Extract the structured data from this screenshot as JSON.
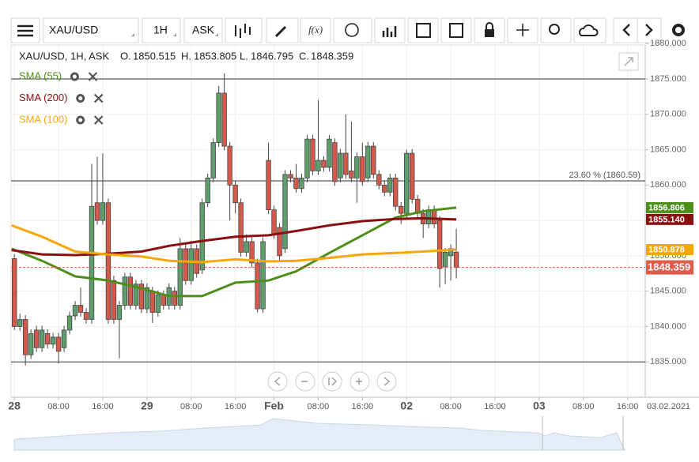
{
  "toolbar": {
    "symbol": "XAU/USD",
    "interval": "1H",
    "price_side": "ASK"
  },
  "header": {
    "text": "XAU/USD, 1H, ASK",
    "open_label": "O.",
    "high_label": "H.",
    "low_label": "L.",
    "close_label": "C."
  },
  "chart_data": {
    "type": "candlestick",
    "up_color": "#5e9d6c",
    "down_color": "#d35a4a",
    "x": [
      0,
      1,
      2,
      3,
      4,
      5,
      6,
      7,
      8,
      9,
      10,
      11,
      12,
      13,
      14,
      15,
      16,
      17,
      18,
      19,
      20,
      21,
      22,
      23,
      24,
      25,
      26,
      27,
      28,
      29,
      30,
      31,
      32,
      33,
      34,
      35,
      36,
      37,
      38,
      39,
      40,
      41,
      42,
      43,
      44,
      45,
      46,
      47,
      48,
      49,
      50,
      51,
      52,
      53,
      54,
      55,
      56,
      57,
      58,
      59,
      60,
      61,
      62,
      63,
      64,
      65,
      66,
      67,
      68,
      69,
      70,
      71,
      72,
      73,
      74,
      75,
      76,
      77,
      78,
      79,
      80
    ],
    "open": [
      1849.6,
      1840,
      1841,
      1836,
      1839.5,
      1837,
      1839,
      1837.5,
      1838.5,
      1837,
      1839.5,
      1841.5,
      1843,
      1842,
      1841,
      1857.5,
      1855,
      1857.5,
      1846.5,
      1841,
      1843,
      1847,
      1843,
      1846,
      1842.5,
      1845,
      1842,
      1844.5,
      1843,
      1845,
      1843,
      1851,
      1846.5,
      1851,
      1848,
      1857.5,
      1861,
      1866,
      1873,
      1865.5,
      1860,
      1857.5,
      1850.5,
      1852,
      1849,
      1842.5,
      1863.5,
      1856.5,
      1854,
      1851,
      1861.5,
      1861,
      1859.5,
      1861,
      1866.5,
      1862,
      1863.5,
      1862.5,
      1866,
      1861,
      1864.5,
      1862,
      1861,
      1864,
      1861,
      1865.5,
      1861.5,
      1860,
      1859,
      1861,
      1857,
      1856,
      1864.5,
      1858,
      1856,
      1854.5,
      1856.5,
      1855,
      1848.5,
      1850,
      1850.515
    ],
    "high": [
      1850.2,
      1841.8,
      1841.6,
      1839.6,
      1840.1,
      1840.1,
      1839.6,
      1839.1,
      1839.1,
      1840.1,
      1842.1,
      1843.6,
      1845.5,
      1842.6,
      1863,
      1864,
      1864.5,
      1858.1,
      1847.2,
      1843.6,
      1847.6,
      1847.6,
      1846.6,
      1846.6,
      1846.1,
      1845.6,
      1845.1,
      1845.1,
      1846.1,
      1845.6,
      1852.5,
      1851.6,
      1852.1,
      1851.6,
      1858.1,
      1861.6,
      1866.6,
      1874,
      1875.8,
      1866.1,
      1860.6,
      1858.1,
      1853,
      1852.6,
      1849.6,
      1852.6,
      1866,
      1857.1,
      1854.6,
      1862.1,
      1862.1,
      1863,
      1861.6,
      1867.1,
      1867.1,
      1872,
      1864.1,
      1867.1,
      1866.6,
      1865.1,
      1870,
      1869,
      1864.6,
      1866,
      1866.1,
      1866.1,
      1862.1,
      1860.6,
      1861.6,
      1861.6,
      1857.6,
      1865,
      1865.1,
      1858.6,
      1856.6,
      1857.1,
      1857.1,
      1855.6,
      1851.1,
      1851.6,
      1853.805
    ],
    "low": [
      1839.5,
      1839.4,
      1834.5,
      1835.4,
      1836.4,
      1836.4,
      1836.9,
      1836.9,
      1834.8,
      1836.4,
      1838.9,
      1840.9,
      1841.4,
      1840.4,
      1840.4,
      1854.4,
      1854.4,
      1840.4,
      1840.4,
      1835.5,
      1842.4,
      1842.4,
      1842.4,
      1841.9,
      1841.9,
      1840.5,
      1841.4,
      1842.4,
      1842.4,
      1842.4,
      1842.4,
      1845.9,
      1845.9,
      1846.9,
      1847.4,
      1856.9,
      1860.4,
      1865.4,
      1864.9,
      1855,
      1856,
      1849.9,
      1849.9,
      1848.4,
      1842,
      1841.9,
      1855.9,
      1852.4,
      1849.4,
      1850.4,
      1860.4,
      1858.9,
      1858.9,
      1860.4,
      1861.4,
      1861.4,
      1861.9,
      1861.9,
      1859.9,
      1860.4,
      1860.9,
      1860.4,
      1857.5,
      1859.9,
      1860.4,
      1860.9,
      1859.4,
      1858.4,
      1858.4,
      1856.4,
      1854.5,
      1855.4,
      1857.4,
      1855.4,
      1852.5,
      1853.9,
      1853.9,
      1845.5,
      1846,
      1846.5,
      1846.795
    ],
    "close": [
      1840,
      1841,
      1836,
      1839,
      1837,
      1839.5,
      1837.5,
      1838.5,
      1836.5,
      1839.5,
      1841.5,
      1843,
      1842,
      1841,
      1857,
      1855,
      1857.5,
      1841,
      1841,
      1843,
      1847,
      1843,
      1846,
      1842.5,
      1845.5,
      1842,
      1844.5,
      1843,
      1845.5,
      1843,
      1851,
      1846.5,
      1851,
      1847.5,
      1857.5,
      1861,
      1866,
      1873,
      1865.5,
      1860,
      1857.5,
      1850.5,
      1852,
      1849,
      1842.5,
      1852,
      1856.5,
      1853,
      1850,
      1861.5,
      1861,
      1859.5,
      1861,
      1866.5,
      1862,
      1863.5,
      1862.5,
      1866.5,
      1860.5,
      1864.5,
      1861.5,
      1861,
      1864,
      1860.5,
      1865.5,
      1861.5,
      1860,
      1859,
      1861,
      1857,
      1856,
      1864.5,
      1858,
      1856,
      1854.5,
      1856.5,
      1854.5,
      1848.2,
      1850.5,
      1851,
      1848.359
    ],
    "lines": [
      {
        "name": "SMA (55)",
        "color": "#4e8f1c",
        "x": [
          -0.5,
          5,
          11,
          17,
          23,
          28,
          34,
          40,
          46,
          51,
          57,
          63,
          69,
          74,
          80
        ],
        "values": [
          1851,
          1849.3,
          1847.1,
          1846.5,
          1845.4,
          1844.3,
          1844.3,
          1846.2,
          1846.5,
          1847.8,
          1850.4,
          1852.9,
          1855.4,
          1856.3,
          1856.806
        ]
      },
      {
        "name": "SMA (200)",
        "color": "#8b0f0f",
        "x": [
          -0.5,
          5,
          11,
          17,
          23,
          28,
          34,
          40,
          46,
          51,
          57,
          63,
          69,
          74,
          80
        ],
        "values": [
          1850.8,
          1850.2,
          1850.1,
          1850.3,
          1850.6,
          1851.4,
          1852.1,
          1852.7,
          1852.9,
          1853.5,
          1854.3,
          1854.9,
          1855.2,
          1855.3,
          1855.14
        ]
      },
      {
        "name": "SMA (100)",
        "color": "#f5a70a",
        "x": [
          -0.5,
          5,
          11,
          17,
          23,
          28,
          34,
          40,
          46,
          51,
          57,
          63,
          69,
          74,
          80
        ],
        "values": [
          1854.3,
          1852.7,
          1850.6,
          1850.2,
          1849.9,
          1849.3,
          1849.1,
          1849.5,
          1849.2,
          1849.3,
          1849.7,
          1850.2,
          1850.4,
          1850.6,
          1850.878
        ]
      }
    ],
    "price_tags": [
      {
        "value": 1856.806,
        "label": "1856.806",
        "color": "#4e8f1c"
      },
      {
        "value": 1855.14,
        "label": "1855.140",
        "color": "#8b0f0f"
      },
      {
        "value": 1850.878,
        "label": "1850.878",
        "color": "#f5a70a"
      }
    ],
    "last_color": "#e25b4a",
    "levels": [
      {
        "value": 1875
      },
      {
        "value": 1860.59,
        "label": "23.60 % (1860.59)"
      },
      {
        "value": 1835
      }
    ],
    "xlim": [
      -0.6,
      114.2
    ],
    "xticks": [
      {
        "value": 0,
        "label": "28"
      },
      {
        "value": 8,
        "label": "08:00"
      },
      {
        "value": 16,
        "label": "16:00"
      },
      {
        "value": 24,
        "label": "29"
      },
      {
        "value": 32,
        "label": "08:00"
      },
      {
        "value": 40,
        "label": "16:00"
      },
      {
        "value": 47,
        "label": "Feb"
      },
      {
        "value": 55,
        "label": "08:00"
      },
      {
        "value": 63,
        "label": "16:00"
      },
      {
        "value": 71,
        "label": "02"
      },
      {
        "value": 79,
        "label": "08:00"
      },
      {
        "value": 87,
        "label": "16:00"
      },
      {
        "value": 95,
        "label": "03"
      },
      {
        "value": 103,
        "label": "08:00"
      },
      {
        "value": 111,
        "label": "16:00"
      }
    ],
    "x_end_label": "03.02.2021",
    "ylim": [
      1830,
      1879.8
    ],
    "yticks": [
      {
        "value": 1835,
        "label": "1835.000"
      },
      {
        "value": 1840,
        "label": "1840.000"
      },
      {
        "value": 1845,
        "label": "1845.000"
      },
      {
        "value": 1850,
        "label": "1850.000"
      },
      {
        "value": 1855,
        "label": "1855.000"
      },
      {
        "value": 1860,
        "label": "1860.000"
      },
      {
        "value": 1865,
        "label": "1865.000"
      },
      {
        "value": 1870,
        "label": "1870.000"
      },
      {
        "value": 1875,
        "label": "1875.000"
      },
      {
        "value": 1880,
        "label": "1880.000"
      }
    ],
    "grid": true
  }
}
